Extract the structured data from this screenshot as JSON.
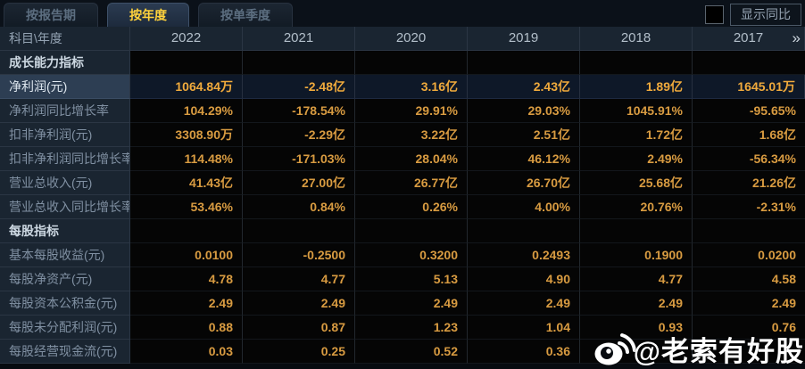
{
  "tabs": [
    {
      "label": "按报告期",
      "active": false
    },
    {
      "label": "按年度",
      "active": true
    },
    {
      "label": "按单季度",
      "active": false
    }
  ],
  "controls": {
    "yoy_checkbox_checked": false,
    "yoy_toggle_label": "显示同比"
  },
  "table": {
    "corner_label": "科目\\年度",
    "year_columns": [
      "2022",
      "2021",
      "2020",
      "2019",
      "2018",
      "2017"
    ],
    "more_columns_icon": "»",
    "rows": [
      {
        "label": "成长能力指标",
        "type": "section",
        "values": [
          "",
          "",
          "",
          "",
          "",
          ""
        ]
      },
      {
        "label": "净利润(元)",
        "type": "highlight",
        "values": [
          "1064.84万",
          "-2.48亿",
          "3.16亿",
          "2.43亿",
          "1.89亿",
          "1645.01万"
        ]
      },
      {
        "label": "净利润同比增长率",
        "type": "data",
        "values": [
          "104.29%",
          "-178.54%",
          "29.91%",
          "29.03%",
          "1045.91%",
          "-95.65%"
        ]
      },
      {
        "label": "扣非净利润(元)",
        "type": "data",
        "values": [
          "3308.90万",
          "-2.29亿",
          "3.22亿",
          "2.51亿",
          "1.72亿",
          "1.68亿"
        ]
      },
      {
        "label": "扣非净利润同比增长率",
        "type": "data",
        "values": [
          "114.48%",
          "-171.03%",
          "28.04%",
          "46.12%",
          "2.49%",
          "-56.34%"
        ]
      },
      {
        "label": "营业总收入(元)",
        "type": "data",
        "values": [
          "41.43亿",
          "27.00亿",
          "26.77亿",
          "26.70亿",
          "25.68亿",
          "21.26亿"
        ]
      },
      {
        "label": "营业总收入同比增长率",
        "type": "data",
        "values": [
          "53.46%",
          "0.84%",
          "0.26%",
          "4.00%",
          "20.76%",
          "-2.31%"
        ]
      },
      {
        "label": "每股指标",
        "type": "section",
        "values": [
          "",
          "",
          "",
          "",
          "",
          ""
        ]
      },
      {
        "label": "基本每股收益(元)",
        "type": "data",
        "values": [
          "0.0100",
          "-0.2500",
          "0.3200",
          "0.2493",
          "0.1900",
          "0.0200"
        ]
      },
      {
        "label": "每股净资产(元)",
        "type": "data",
        "values": [
          "4.78",
          "4.77",
          "5.13",
          "4.90",
          "4.77",
          "4.58"
        ]
      },
      {
        "label": "每股资本公积金(元)",
        "type": "data",
        "values": [
          "2.49",
          "2.49",
          "2.49",
          "2.49",
          "2.49",
          "2.49"
        ]
      },
      {
        "label": "每股未分配利润(元)",
        "type": "data",
        "values": [
          "0.88",
          "0.87",
          "1.23",
          "1.04",
          "0.93",
          "0.76"
        ]
      },
      {
        "label": "每股经营现金流(元)",
        "type": "data",
        "values": [
          "0.03",
          "0.25",
          "0.52",
          "0.36",
          "",
          ""
        ]
      }
    ]
  },
  "watermark": {
    "text": "@老索有好股"
  },
  "colors": {
    "accent_value": "#d89b41",
    "highlight_value": "#f0aa3c",
    "active_tab_text": "#ffd23c",
    "panel_bg": "#1a2531",
    "data_bg": "#050505"
  }
}
